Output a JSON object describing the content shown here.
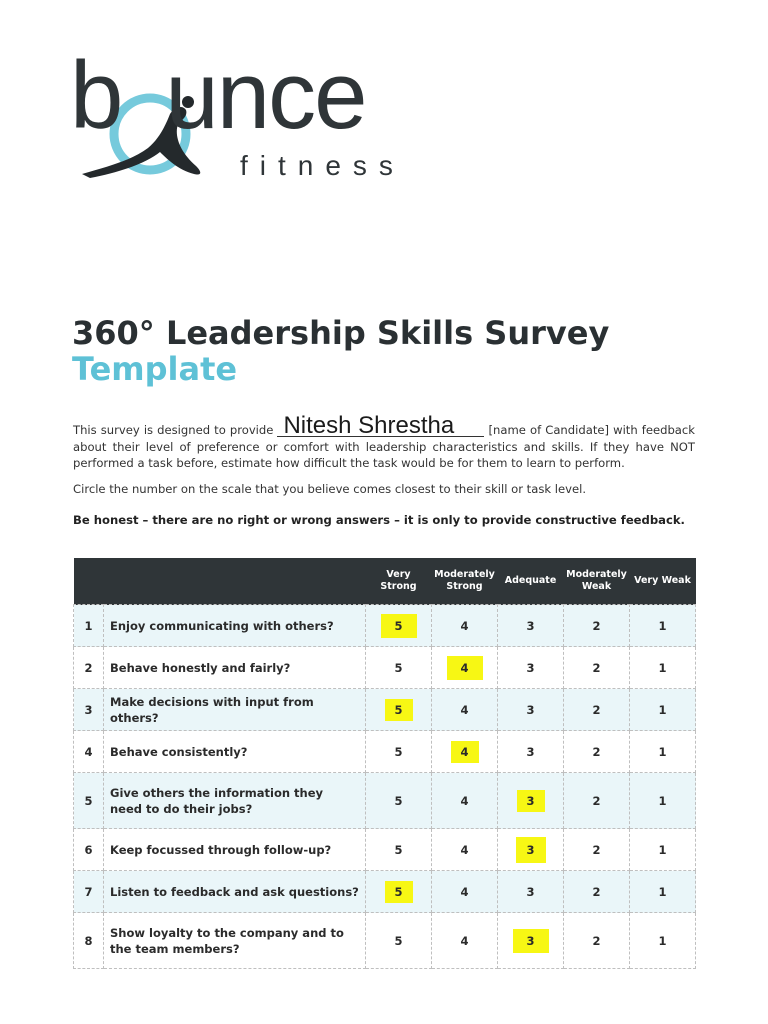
{
  "logo": {
    "word": "bounce",
    "sub": "fitness"
  },
  "title": "360° Leadership Skills Survey",
  "subtitle": "Template",
  "intro": {
    "before": "This survey is designed to provide",
    "candidate": "Nitesh Shrestha",
    "after": "[name of Candidate] with feedback about their level of preference or comfort with leadership characteristics and skills. If they have NOT performed a task before, estimate how difficult the task would be for them to learn to perform."
  },
  "instruction": "Circle the number on the scale that you believe comes closest to their skill or task level.",
  "honesty_note": "Be honest – there are no right or wrong answers – it is only to provide constructive feedback.",
  "table": {
    "headers": [
      "",
      "",
      "Very Strong",
      "Moderately Strong",
      "Adequate",
      "Moderately Weak",
      "Very Weak"
    ],
    "scale": [
      "5",
      "4",
      "3",
      "2",
      "1"
    ],
    "rows": [
      {
        "num": "1",
        "question": "Enjoy communicating with others?",
        "selected": "5"
      },
      {
        "num": "2",
        "question": "Behave honestly and fairly?",
        "selected": "4"
      },
      {
        "num": "3",
        "question": "Make decisions with input from others?",
        "selected": "5"
      },
      {
        "num": "4",
        "question": "Behave consistently?",
        "selected": "4"
      },
      {
        "num": "5",
        "question": "Give others the information they need to do their jobs?",
        "selected": "3"
      },
      {
        "num": "6",
        "question": "Keep focussed through follow-up?",
        "selected": "3"
      },
      {
        "num": "7",
        "question": "Listen to feedback and ask questions?",
        "selected": "5"
      },
      {
        "num": "8",
        "question": "Show loyalty to the company and to the team members?",
        "selected": "3"
      }
    ]
  },
  "colors": {
    "accent": "#5ec1d6",
    "dark": "#2f3538",
    "highlight": "#f7f714",
    "row_shade": "#eaf6f9"
  }
}
